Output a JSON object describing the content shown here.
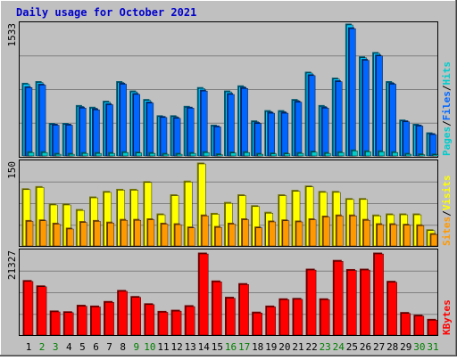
{
  "chart_data": [
    {
      "type": "bar",
      "panel": "top",
      "title": "Daily usage for October 2021",
      "ylabel_max": "1533",
      "categories": [
        "1",
        "2",
        "3",
        "4",
        "5",
        "6",
        "7",
        "8",
        "9",
        "10",
        "11",
        "12",
        "13",
        "14",
        "15",
        "16",
        "17",
        "18",
        "19",
        "20",
        "21",
        "22",
        "23",
        "24",
        "25",
        "26",
        "27",
        "28",
        "29",
        "30",
        "31"
      ],
      "series": [
        {
          "name": "Hits",
          "color": "#00ccff",
          "values": [
            840,
            860,
            370,
            370,
            580,
            560,
            630,
            860,
            750,
            650,
            460,
            460,
            570,
            790,
            350,
            750,
            810,
            400,
            520,
            520,
            650,
            970,
            580,
            900,
            1533,
            1150,
            1200,
            860,
            410,
            360,
            260
          ]
        },
        {
          "name": "Files",
          "color": "#0066ff",
          "values": [
            800,
            830,
            360,
            360,
            560,
            540,
            600,
            840,
            720,
            620,
            450,
            440,
            560,
            760,
            340,
            720,
            790,
            380,
            500,
            500,
            630,
            940,
            560,
            870,
            1490,
            1120,
            1170,
            840,
            400,
            350,
            250
          ]
        },
        {
          "name": "Pages",
          "color": "#00cccc",
          "values": [
            40,
            40,
            20,
            20,
            30,
            30,
            30,
            40,
            35,
            30,
            20,
            20,
            30,
            40,
            15,
            35,
            40,
            20,
            25,
            25,
            30,
            45,
            30,
            40,
            60,
            50,
            50,
            40,
            20,
            15,
            12
          ]
        }
      ],
      "right_label": [
        "Pages",
        "/",
        "Files",
        "/",
        "Hits"
      ]
    },
    {
      "type": "bar",
      "panel": "middle",
      "ylabel_max": "150",
      "series": [
        {
          "name": "Visits",
          "color": "#ffff00",
          "values": [
            103,
            107,
            75,
            75,
            65,
            88,
            98,
            102,
            102,
            116,
            57,
            92,
            117,
            150,
            58,
            78,
            92,
            72,
            60,
            92,
            100,
            108,
            98,
            98,
            85,
            85,
            55,
            57,
            57,
            57,
            28
          ]
        },
        {
          "name": "Sites",
          "color": "#ff9900",
          "values": [
            45,
            46,
            40,
            31,
            43,
            45,
            42,
            47,
            47,
            48,
            40,
            39,
            33,
            55,
            34,
            40,
            48,
            33,
            44,
            46,
            44,
            48,
            53,
            55,
            55,
            47,
            39,
            39,
            38,
            37,
            21
          ]
        }
      ],
      "right_label": [
        "Sites",
        "/",
        "Visits"
      ]
    },
    {
      "type": "bar",
      "panel": "bottom",
      "ylabel_max": "21327",
      "series": [
        {
          "name": "KBytes",
          "color": "#ff0000",
          "values": [
            14100,
            12700,
            6100,
            5900,
            7600,
            7400,
            8600,
            11500,
            9900,
            8000,
            6000,
            6300,
            7500,
            21327,
            14000,
            9700,
            13300,
            5800,
            7400,
            9300,
            9400,
            17100,
            9300,
            19400,
            17000,
            17100,
            21327,
            13900,
            5700,
            5000,
            3900
          ]
        }
      ],
      "right_label": [
        "KBytes"
      ]
    }
  ],
  "x_labels": {
    "values": [
      "1",
      "2",
      "3",
      "4",
      "5",
      "6",
      "7",
      "8",
      "9",
      "10",
      "11",
      "12",
      "13",
      "14",
      "15",
      "16",
      "17",
      "18",
      "19",
      "20",
      "21",
      "22",
      "23",
      "24",
      "25",
      "26",
      "27",
      "28",
      "29",
      "30",
      "31"
    ],
    "weekend": [
      false,
      true,
      true,
      false,
      false,
      false,
      false,
      false,
      true,
      true,
      false,
      false,
      false,
      false,
      false,
      true,
      true,
      false,
      false,
      false,
      false,
      false,
      true,
      true,
      false,
      false,
      false,
      false,
      false,
      true,
      true
    ]
  },
  "colors": {
    "title": "#0000cc",
    "background": "#c0c0c0",
    "grid": "#808080",
    "weekday_label": "#000000",
    "weekend_label": "#007f00",
    "slash": "#000000"
  }
}
